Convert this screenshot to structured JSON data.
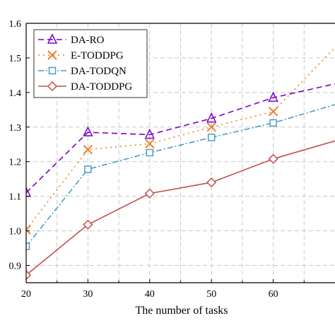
{
  "chart_data": {
    "type": "line",
    "xlabel": "The number of tasks",
    "ylabel": "",
    "x": [
      20,
      30,
      40,
      50,
      60,
      70
    ],
    "xticks": [
      20,
      30,
      40,
      50,
      60
    ],
    "xlim": [
      20,
      70
    ],
    "ylim": [
      0.85,
      1.6
    ],
    "yticks": [
      0.9,
      1.0,
      1.1,
      1.2,
      1.3,
      1.4,
      1.5,
      1.6
    ],
    "grid": true,
    "legend_position": "top-left",
    "series": [
      {
        "name": "DA-RO",
        "values": [
          1.11,
          1.285,
          1.278,
          1.325,
          1.385,
          1.425
        ],
        "color": "#7b00c8",
        "dash": "8,5",
        "marker": "triangle"
      },
      {
        "name": "E-TODDPG",
        "values": [
          1.003,
          1.235,
          1.252,
          1.3,
          1.345,
          1.53
        ],
        "color": "#e8822a",
        "dash": "2,5",
        "marker": "x"
      },
      {
        "name": "DA-TODQN",
        "values": [
          0.955,
          1.178,
          1.226,
          1.27,
          1.312,
          1.365
        ],
        "color": "#4a9cc8",
        "dash": "8,3,2,3",
        "marker": "square"
      },
      {
        "name": "DA-TODDPG",
        "values": [
          0.872,
          1.018,
          1.108,
          1.14,
          1.208,
          1.26
        ],
        "color": "#c0504d",
        "dash": "",
        "marker": "diamond"
      }
    ]
  }
}
